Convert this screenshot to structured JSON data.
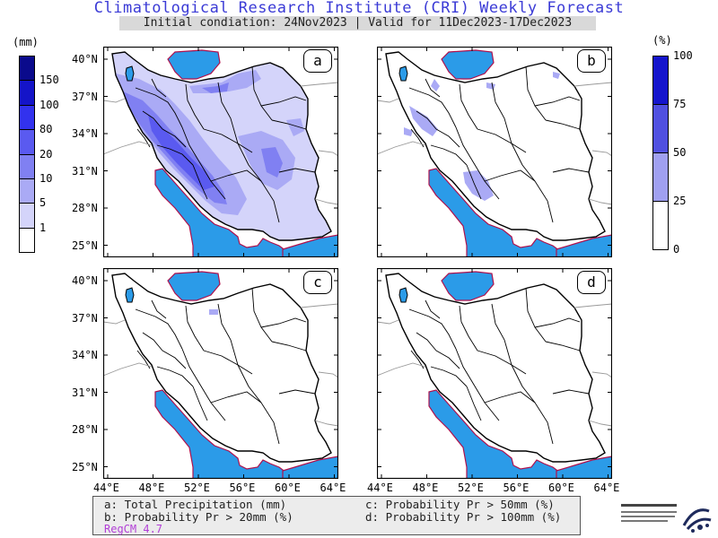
{
  "title": "Climatological Research Institute (CRI) Weekly Forecast",
  "subtitle": "Initial condiation: 24Nov2023 | Valid for 11Dec2023-17Dec2023",
  "left_colorbar": {
    "unit": "(mm)",
    "levels": [
      "150",
      "100",
      "80",
      "20",
      "10",
      "5",
      "1"
    ],
    "colors": [
      "#0a0a8c",
      "#1414c8",
      "#3232ee",
      "#5a5af0",
      "#8080f2",
      "#aaaaf5",
      "#d4d4fa",
      "#ffffff"
    ]
  },
  "right_colorbar": {
    "unit": "(%)",
    "levels": [
      "100",
      "75",
      "50",
      "25",
      "0"
    ],
    "colors": [
      "#1414cc",
      "#5050e0",
      "#a0a0f0",
      "#ffffff"
    ]
  },
  "panels": [
    {
      "id": "a",
      "label": "a"
    },
    {
      "id": "b",
      "label": "b"
    },
    {
      "id": "c",
      "label": "c"
    },
    {
      "id": "d",
      "label": "d"
    }
  ],
  "lat_ticks": [
    "40°N",
    "37°N",
    "34°N",
    "31°N",
    "28°N",
    "25°N"
  ],
  "lon_ticks": [
    "44°E",
    "48°E",
    "52°E",
    "56°E",
    "60°E",
    "64°E"
  ],
  "legend": {
    "a": "a: Total Precipitation (mm)",
    "b": "b: Probability Pr > 20mm (%)",
    "c": "c: Probability Pr > 50mm (%)",
    "d": "d: Probability Pr > 100mm (%)",
    "model": "RegCM 4.7"
  },
  "colors": {
    "sea": "#2b9be8",
    "coast": "#b0104c",
    "title": "#3b3bd6",
    "model": "#b23fd6"
  },
  "logo": {
    "name": "institute-logo"
  }
}
